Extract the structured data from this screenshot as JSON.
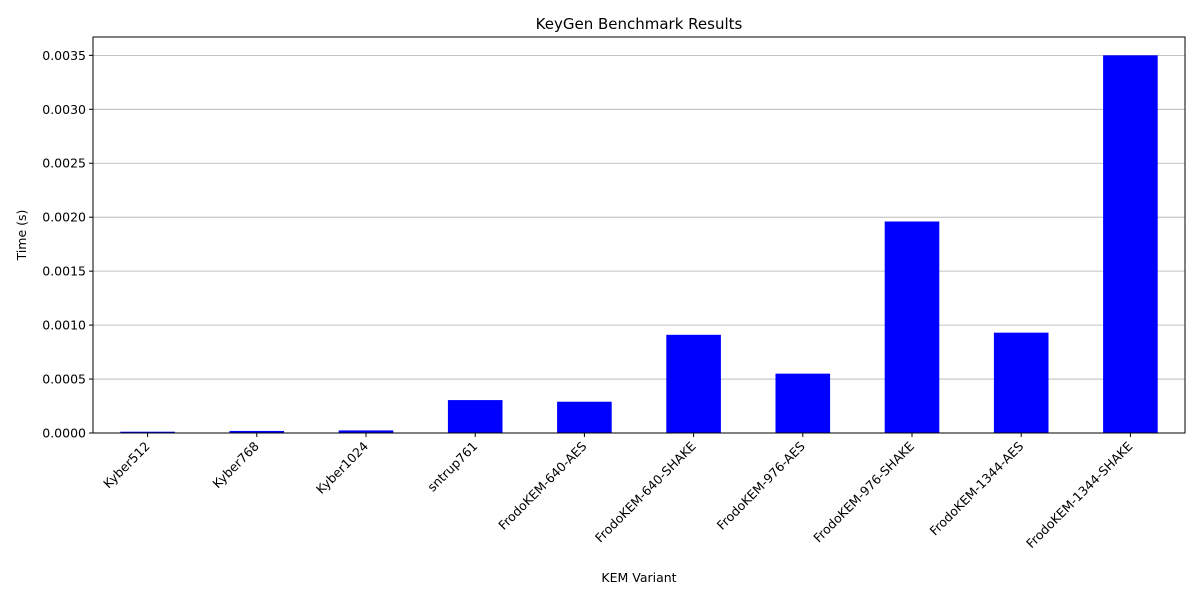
{
  "chart_data": {
    "type": "bar",
    "title": "KeyGen Benchmark Results",
    "xlabel": "KEM Variant",
    "ylabel": "Time (s)",
    "categories": [
      "Kyber512",
      "Kyber768",
      "Kyber1024",
      "sntrup761",
      "FrodoKEM-640-AES",
      "FrodoKEM-640-SHAKE",
      "FrodoKEM-976-AES",
      "FrodoKEM-976-SHAKE",
      "FrodoKEM-1344-AES",
      "FrodoKEM-1344-SHAKE"
    ],
    "values": [
      1.2e-05,
      1.9e-05,
      2.4e-05,
      0.000305,
      0.00029,
      0.00091,
      0.00055,
      0.00196,
      0.00093,
      0.0035
    ],
    "ylim": [
      0,
      0.00367
    ],
    "yticks": [
      "0.0000",
      "0.0005",
      "0.0010",
      "0.0015",
      "0.0020",
      "0.0025",
      "0.0030",
      "0.0035"
    ],
    "ytick_values": [
      0,
      0.0005,
      0.001,
      0.0015,
      0.002,
      0.0025,
      0.003,
      0.0035
    ],
    "grid": "y",
    "bar_color": "#0000ff"
  }
}
